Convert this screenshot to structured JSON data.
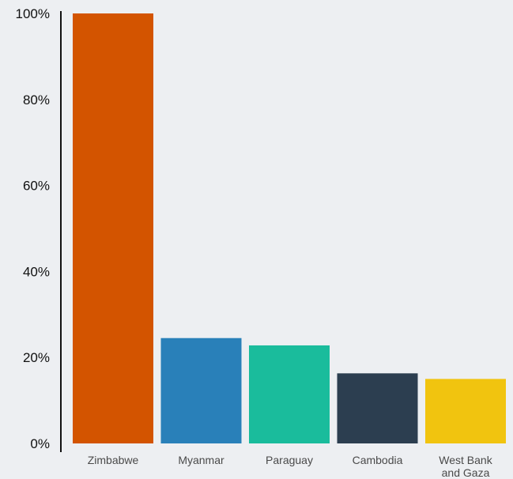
{
  "chart_data": {
    "type": "bar",
    "title": "",
    "xlabel": "",
    "ylabel": "",
    "categories": [
      [
        "Zimbabwe"
      ],
      [
        "Myanmar"
      ],
      [
        "Paraguay"
      ],
      [
        "Cambodia"
      ],
      [
        "West Bank",
        "and Gaza"
      ]
    ],
    "values": [
      100,
      24.5,
      22.8,
      16.3,
      15.0
    ],
    "colors": [
      "#d35400",
      "#2980b9",
      "#1abc9c",
      "#2c3e50",
      "#f1c40f"
    ],
    "y_ticks": [
      "0%",
      "20%",
      "40%",
      "60%",
      "80%",
      "100%"
    ],
    "y_tick_values": [
      0,
      20,
      40,
      60,
      80,
      100
    ],
    "ylim": [
      0,
      100
    ],
    "grid": false,
    "legend": "none"
  }
}
